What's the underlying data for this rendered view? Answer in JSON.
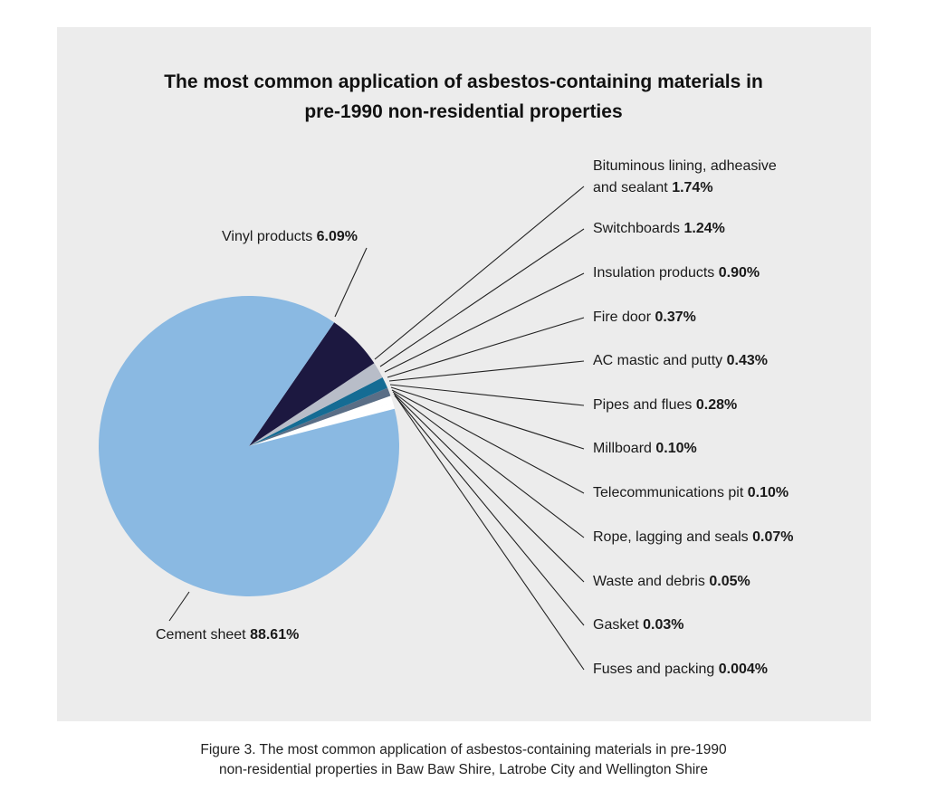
{
  "chart_data": {
    "type": "pie",
    "title": [
      "The most common application of asbestos-containing materials in",
      "pre-1990 non-residential properties"
    ],
    "slices": [
      {
        "label": "Cement sheet",
        "value": 88.61,
        "value_label": "88.61%",
        "color": "#8ab9e2"
      },
      {
        "label": "Vinyl products",
        "value": 6.09,
        "value_label": "6.09%",
        "color": "#1c1840"
      },
      {
        "label": "Bituminous lining, adheasive and sealant",
        "label_lines": [
          "Bituminous lining, adheasive",
          "and sealant"
        ],
        "value": 1.74,
        "value_label": "1.74%",
        "color": "#b8bdc8"
      },
      {
        "label": "Switchboards",
        "value": 1.24,
        "value_label": "1.24%",
        "color": "#156c94"
      },
      {
        "label": "Insulation products",
        "value": 0.9,
        "value_label": "0.90%",
        "color": "#5a6e86"
      },
      {
        "label": "Fire door",
        "value": 0.37,
        "value_label": "0.37%",
        "color": "#ffffff"
      },
      {
        "label": "AC mastic and putty",
        "value": 0.43,
        "value_label": "0.43%",
        "color": "#ffffff"
      },
      {
        "label": "Pipes and flues",
        "value": 0.28,
        "value_label": "0.28%",
        "color": "#ffffff"
      },
      {
        "label": "Millboard",
        "value": 0.1,
        "value_label": "0.10%",
        "color": "#ffffff"
      },
      {
        "label": "Telecommunications pit",
        "value": 0.1,
        "value_label": "0.10%",
        "color": "#ffffff"
      },
      {
        "label": "Rope, lagging and seals",
        "value": 0.07,
        "value_label": "0.07%",
        "color": "#ffffff"
      },
      {
        "label": "Waste and debris",
        "value": 0.05,
        "value_label": "0.05%",
        "color": "#ffffff"
      },
      {
        "label": "Gasket",
        "value": 0.03,
        "value_label": "0.03%",
        "color": "#ffffff"
      },
      {
        "label": "Fuses and packing",
        "value": 0.004,
        "value_label": "0.004%",
        "color": "#ffffff"
      }
    ]
  },
  "caption": [
    "Figure 3. The most common application of asbestos-containing materials in pre-1990",
    "non-residential properties in Baw Baw Shire, Latrobe City and Wellington Shire"
  ],
  "colors": {
    "panel_background": "#ececec",
    "leader_line": "#222222"
  }
}
